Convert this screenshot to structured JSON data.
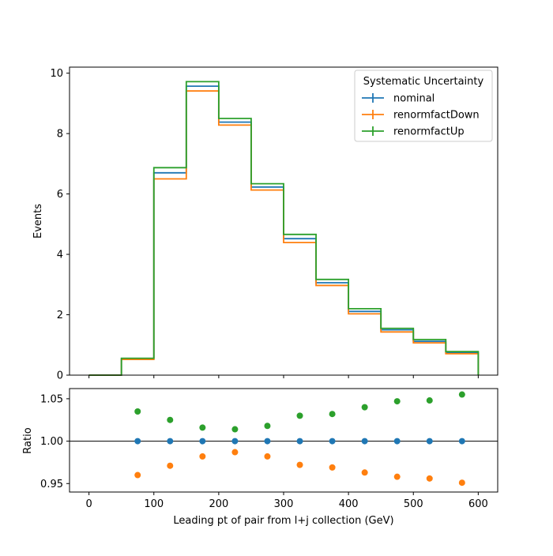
{
  "chart_data": [
    {
      "type": "step-histogram",
      "xlabel": "",
      "ylabel": "Events",
      "xlim": [
        -30,
        630
      ],
      "ylim": [
        0,
        10.2
      ],
      "yticks": [
        0,
        2,
        4,
        6,
        8,
        10
      ],
      "xticks": [
        0,
        100,
        200,
        300,
        400,
        500,
        600
      ],
      "bin_edges": [
        0,
        50,
        100,
        150,
        200,
        250,
        300,
        350,
        400,
        450,
        500,
        550,
        600
      ],
      "legend": {
        "title": "Systematic Uncertainty",
        "placement": "top-right"
      },
      "series": [
        {
          "name": "nominal",
          "color": "#1f77b4",
          "values": [
            0,
            0.54,
            6.7,
            9.57,
            8.38,
            6.23,
            4.52,
            3.06,
            2.11,
            1.5,
            1.12,
            0.75
          ]
        },
        {
          "name": "renormfactDown",
          "color": "#ff7f0e",
          "values": [
            0,
            0.52,
            6.5,
            9.41,
            8.28,
            6.13,
            4.39,
            2.97,
            2.03,
            1.43,
            1.07,
            0.71
          ]
        },
        {
          "name": "renormfactUp",
          "color": "#2ca02c",
          "values": [
            0,
            0.56,
            6.87,
            9.72,
            8.5,
            6.34,
            4.66,
            3.17,
            2.2,
            1.55,
            1.18,
            0.78
          ]
        }
      ]
    },
    {
      "type": "scatter",
      "xlabel": "Leading pt of pair from l+j collection (GeV)",
      "ylabel": "Ratio",
      "xlim": [
        -30,
        630
      ],
      "ylim": [
        0.94,
        1.062
      ],
      "yticks": [
        0.95,
        1.0,
        1.05
      ],
      "ytick_labels": [
        "0.95",
        "1.00",
        "1.05"
      ],
      "xticks": [
        0,
        100,
        200,
        300,
        400,
        500,
        600
      ],
      "reference_line": 1.0,
      "x": [
        75,
        125,
        175,
        225,
        275,
        325,
        375,
        425,
        475,
        525,
        575
      ],
      "series": [
        {
          "name": "nominal",
          "color": "#1f77b4",
          "values": [
            1.0,
            1.0,
            1.0,
            1.0,
            1.0,
            1.0,
            1.0,
            1.0,
            1.0,
            1.0,
            1.0
          ]
        },
        {
          "name": "renormfactDown",
          "color": "#ff7f0e",
          "values": [
            0.96,
            0.971,
            0.982,
            0.987,
            0.982,
            0.972,
            0.969,
            0.963,
            0.958,
            0.956,
            0.951
          ]
        },
        {
          "name": "renormfactUp",
          "color": "#2ca02c",
          "values": [
            1.035,
            1.025,
            1.016,
            1.014,
            1.018,
            1.03,
            1.032,
            1.04,
            1.047,
            1.048,
            1.055
          ]
        }
      ]
    }
  ]
}
